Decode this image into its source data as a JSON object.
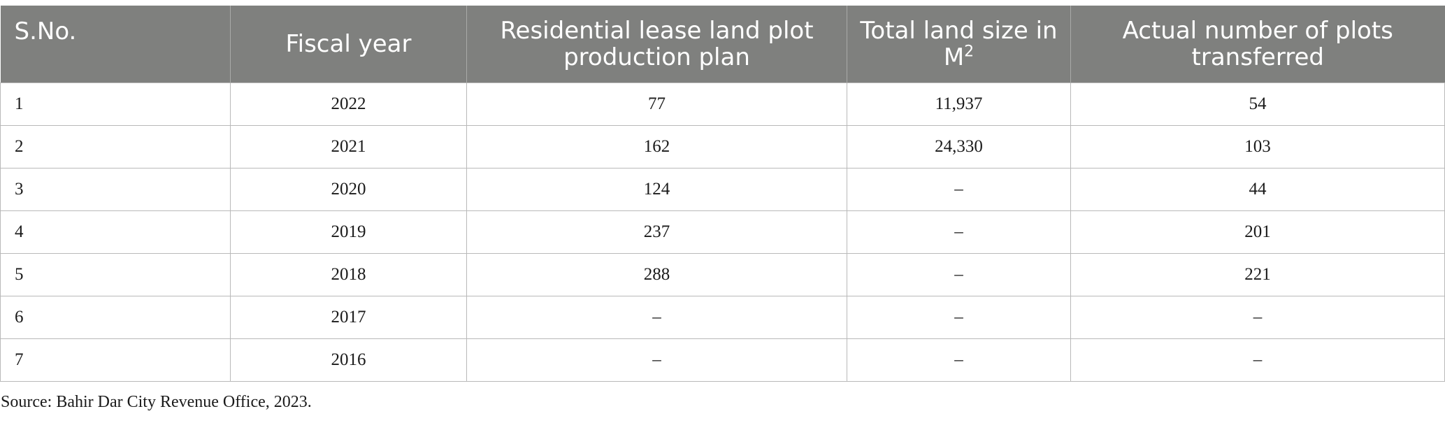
{
  "table": {
    "headers": {
      "sno": "S.No.",
      "fiscal_year": "Fiscal year",
      "plan": "Residential lease land plot production plan",
      "land_size": "Total land size in M",
      "land_size_sup": "2",
      "plots_transferred": "Actual number of plots transferred"
    },
    "rows": [
      {
        "sno": "1",
        "year": "2022",
        "plan": "77",
        "size": "11,937",
        "transferred": "54"
      },
      {
        "sno": "2",
        "year": "2021",
        "plan": "162",
        "size": "24,330",
        "transferred": "103"
      },
      {
        "sno": "3",
        "year": "2020",
        "plan": "124",
        "size": "–",
        "transferred": "44"
      },
      {
        "sno": "4",
        "year": "2019",
        "plan": "237",
        "size": "–",
        "transferred": "201"
      },
      {
        "sno": "5",
        "year": "2018",
        "plan": "288",
        "size": "–",
        "transferred": "221"
      },
      {
        "sno": "6",
        "year": "2017",
        "plan": "–",
        "size": "–",
        "transferred": "–"
      },
      {
        "sno": "7",
        "year": "2016",
        "plan": "–",
        "size": "–",
        "transferred": "–"
      }
    ]
  },
  "source_note": "Source: Bahir Dar City Revenue Office, 2023.",
  "colors": {
    "header_bg": "#7f807e",
    "header_text": "#ffffff",
    "grid": "#b9b9b9"
  }
}
